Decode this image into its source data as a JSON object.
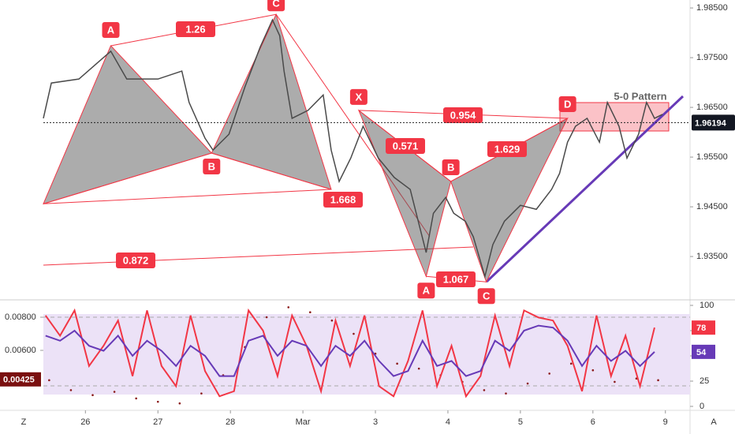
{
  "chart_data": [
    {
      "type": "line",
      "x": [
        -0.58,
        -0.47,
        -0.09,
        0.35,
        0.57,
        1.0,
        1.33,
        1.43,
        1.65,
        1.76,
        1.98,
        2.2,
        2.41,
        2.58,
        2.68,
        2.74,
        2.85,
        3.07,
        3.28,
        3.39,
        3.5,
        3.66,
        3.83,
        4.04,
        4.26,
        4.48,
        4.7,
        4.8,
        4.97,
        5.08,
        5.24,
        5.35,
        5.51,
        5.62,
        5.78,
        6.0,
        6.22,
        6.43,
        6.54,
        6.65,
        6.76,
        6.92,
        7.09,
        7.2,
        7.36,
        7.47,
        7.63,
        7.74,
        7.85,
        7.96
      ],
      "series": [
        {
          "color": "#4a4a4a",
          "values": [
            1.9628,
            1.9699,
            1.9707,
            1.9763,
            1.9707,
            1.9707,
            1.9723,
            1.966,
            1.9588,
            1.9564,
            1.9596,
            1.9691,
            1.9771,
            1.9826,
            1.9794,
            1.9723,
            1.9628,
            1.9644,
            1.9675,
            1.9564,
            1.9501,
            1.9548,
            1.9612,
            1.9548,
            1.9509,
            1.9485,
            1.9358,
            1.9437,
            1.9469,
            1.9437,
            1.9421,
            1.939,
            1.931,
            1.9374,
            1.9421,
            1.9453,
            1.9445,
            1.9485,
            1.9517,
            1.958,
            1.9612,
            1.9628,
            1.958,
            1.966,
            1.9612,
            1.9548,
            1.9596,
            1.966,
            1.9628,
            1.9636
          ]
        }
      ],
      "xlim": [
        -0.58,
        8.34
      ],
      "ylim": [
        1.9266,
        1.9866
      ],
      "yticks": [
        {
          "value": 1.935,
          "label": "1.93500"
        },
        {
          "value": 1.945,
          "label": "1.94500"
        },
        {
          "value": 1.955,
          "label": "1.95500"
        },
        {
          "value": 1.965,
          "label": "1.96500"
        },
        {
          "value": 1.975,
          "label": "1.97500"
        },
        {
          "value": 1.985,
          "label": "1.98500"
        }
      ],
      "last_price": 1.96194,
      "pattern_color": "#f23645",
      "patterns": [
        {
          "points": [
            {
              "label": null,
              "x": -0.58,
              "y": 1.9456
            },
            {
              "label": "A",
              "x": 0.35,
              "y": 1.9774
            },
            {
              "label": "B",
              "x": 1.74,
              "y": 1.9558
            },
            {
              "label": "C",
              "x": 2.63,
              "y": 1.9837
            },
            {
              "label": null,
              "x": 3.39,
              "y": 1.9485
            }
          ],
          "ratios": [
            1.26,
            1.668,
            0.872
          ]
        },
        {
          "points": [
            {
              "label": "X",
              "x": 3.77,
              "y": 1.9644
            },
            {
              "label": "A",
              "x": 4.7,
              "y": 1.931
            },
            {
              "label": "B",
              "x": 5.04,
              "y": 1.9501
            },
            {
              "label": "C",
              "x": 5.53,
              "y": 1.9299
            },
            {
              "label": "D",
              "x": 6.65,
              "y": 1.9628
            }
          ],
          "ratios": [
            0.954,
            0.571,
            1.629,
            1.067
          ]
        }
      ],
      "pattern_name": "5-0 Pattern"
    },
    {
      "type": "line",
      "x": [
        -0.55,
        -0.35,
        -0.15,
        0.05,
        0.25,
        0.45,
        0.65,
        0.85,
        1.05,
        1.25,
        1.45,
        1.65,
        1.85,
        2.05,
        2.25,
        2.45,
        2.65,
        2.85,
        3.05,
        3.25,
        3.45,
        3.65,
        3.85,
        4.05,
        4.25,
        4.45,
        4.65,
        4.85,
        5.05,
        5.25,
        5.45,
        5.65,
        5.85,
        6.05,
        6.25,
        6.45,
        6.65,
        6.85,
        7.05,
        7.25,
        7.45,
        7.65,
        7.85
      ],
      "series": [
        {
          "color": "#f23645",
          "axis": "y",
          "values": [
            90,
            70,
            95,
            40,
            60,
            85,
            30,
            95,
            40,
            20,
            90,
            35,
            10,
            15,
            95,
            75,
            30,
            90,
            60,
            15,
            85,
            40,
            90,
            20,
            10,
            45,
            95,
            20,
            60,
            10,
            30,
            90,
            40,
            95,
            88,
            85,
            60,
            15,
            90,
            30,
            70,
            20,
            78
          ]
        },
        {
          "color": "#673ab7",
          "axis": "y",
          "values": [
            70,
            65,
            75,
            60,
            55,
            70,
            50,
            65,
            55,
            40,
            60,
            50,
            30,
            30,
            65,
            70,
            50,
            65,
            60,
            40,
            60,
            50,
            65,
            45,
            30,
            35,
            65,
            40,
            45,
            30,
            35,
            65,
            55,
            75,
            80,
            78,
            65,
            40,
            60,
            45,
            55,
            40,
            54
          ]
        }
      ],
      "dots": {
        "color": "#8b1a1a",
        "axis": "y2",
        "x": [
          -0.5,
          -0.2,
          0.1,
          0.4,
          0.7,
          1.0,
          1.3,
          1.6,
          1.9,
          2.2,
          2.5,
          2.8,
          3.1,
          3.4,
          3.7,
          4.0,
          4.3,
          4.6,
          4.9,
          5.2,
          5.5,
          5.8,
          6.1,
          6.4,
          6.7,
          7.0,
          7.3,
          7.6,
          7.9
        ],
        "values": [
          0.0042,
          0.0036,
          0.0033,
          0.0035,
          0.0031,
          0.0029,
          0.0028,
          0.0034,
          0.0045,
          0.0062,
          0.008,
          0.0086,
          0.0083,
          0.0078,
          0.007,
          0.0058,
          0.0052,
          0.0049,
          0.0045,
          0.0041,
          0.0036,
          0.0034,
          0.004,
          0.0046,
          0.0052,
          0.0048,
          0.0041,
          0.0043,
          0.0042
        ]
      },
      "xlim": [
        -0.58,
        8.34
      ],
      "ylim": [
        0,
        100
      ],
      "yticks": [
        0,
        25,
        50,
        75,
        100
      ],
      "y2lim": [
        0.00262,
        0.00881
      ],
      "y2ticks": [
        {
          "value": 0.006,
          "label": "0.00600"
        },
        {
          "value": 0.008,
          "label": "0.00800"
        }
      ],
      "y2_marker": 0.00425,
      "xticks": [
        {
          "value": 0,
          "label": "26"
        },
        {
          "value": 1,
          "label": "27"
        },
        {
          "value": 2,
          "label": "28"
        },
        {
          "value": 3,
          "label": "Mar"
        },
        {
          "value": 4,
          "label": "3"
        },
        {
          "value": 5,
          "label": "4"
        },
        {
          "value": 6,
          "label": "5"
        },
        {
          "value": 7,
          "label": "6"
        },
        {
          "value": 8,
          "label": "9"
        }
      ]
    }
  ],
  "ui": {
    "left_button": "Z",
    "right_button": "A"
  }
}
